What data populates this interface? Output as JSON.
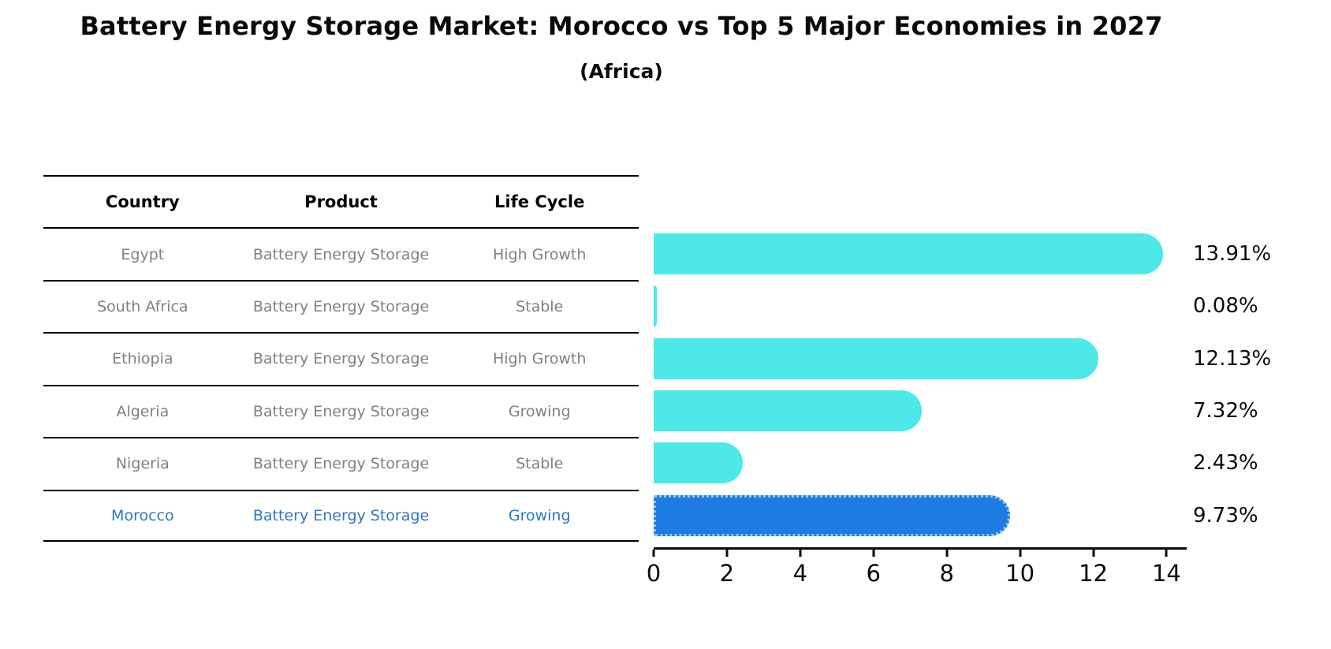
{
  "title": "Battery Energy Storage Market: Morocco vs Top 5 Major Economies in 2027",
  "subtitle": "(Africa)",
  "colors": {
    "bar": "#4DE8E8",
    "highlight_bar": "#1E7BE1",
    "highlight_border": "#8CC7F2",
    "table_text": "#808080",
    "header_text": "#000000",
    "highlight_text": "#2E78C0"
  },
  "table": {
    "columns": [
      "Country",
      "Product",
      "Life Cycle"
    ],
    "rows": [
      {
        "country": "Egypt",
        "product": "Battery Energy Storage",
        "life_cycle": "High Growth",
        "highlight": false
      },
      {
        "country": "South Africa",
        "product": "Battery Energy Storage",
        "life_cycle": "Stable",
        "highlight": false
      },
      {
        "country": "Ethiopia",
        "product": "Battery Energy Storage",
        "life_cycle": "High Growth",
        "highlight": false
      },
      {
        "country": "Algeria",
        "product": "Battery Energy Storage",
        "life_cycle": "Growing",
        "highlight": false
      },
      {
        "country": "Nigeria",
        "product": "Battery Energy Storage",
        "life_cycle": "Stable",
        "highlight": false
      },
      {
        "country": "Morocco",
        "product": "Battery Energy Storage",
        "life_cycle": "Growing",
        "highlight": true
      }
    ]
  },
  "chart_data": {
    "type": "bar",
    "orientation": "horizontal",
    "title": "Battery Energy Storage Market: Morocco vs Top 5 Major Economies in 2027 (Africa)",
    "categories": [
      "Egypt",
      "South Africa",
      "Ethiopia",
      "Algeria",
      "Nigeria",
      "Morocco"
    ],
    "values": [
      13.91,
      0.08,
      12.13,
      7.32,
      2.43,
      9.73
    ],
    "value_labels": [
      "13.91%",
      "0.08%",
      "12.13%",
      "7.32%",
      "2.43%",
      "9.73%"
    ],
    "highlight_index": 5,
    "xticks": [
      0,
      2,
      4,
      6,
      8,
      10,
      12,
      14
    ],
    "xlim": [
      0,
      14.55
    ],
    "xlabel": "",
    "ylabel": "",
    "legend": false,
    "grid": false
  }
}
